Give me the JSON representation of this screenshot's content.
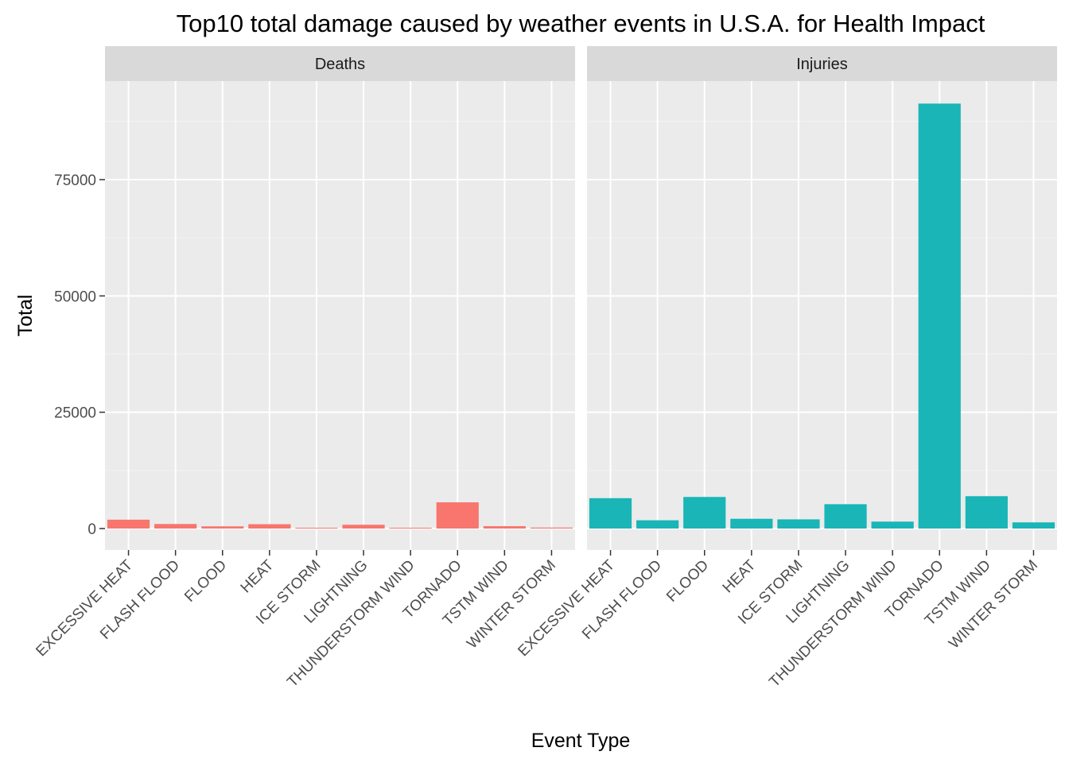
{
  "chart_data": {
    "type": "bar",
    "title": "Top10 total damage caused by weather events in U.S.A. for Health Impact",
    "xlabel": "Event Type",
    "ylabel": "Total",
    "ylim": [
      -4500,
      96000
    ],
    "yticks": [
      0,
      25000,
      50000,
      75000
    ],
    "grid": true,
    "legend": "none",
    "categories": [
      "EXCESSIVE HEAT",
      "FLASH FLOOD",
      "FLOOD",
      "HEAT",
      "ICE STORM",
      "LIGHTNING",
      "THUNDERSTORM WIND",
      "TORNADO",
      "TSTM WIND",
      "WINTER STORM"
    ],
    "series": [
      {
        "name": "Deaths",
        "color": "#F8766D",
        "values": [
          1903,
          978,
          470,
          937,
          89,
          816,
          133,
          5633,
          504,
          206
        ]
      },
      {
        "name": "Injuries",
        "color": "#1AB5B7",
        "values": [
          6525,
          1777,
          6789,
          2100,
          1975,
          5230,
          1488,
          91346,
          6957,
          1321
        ]
      }
    ]
  }
}
